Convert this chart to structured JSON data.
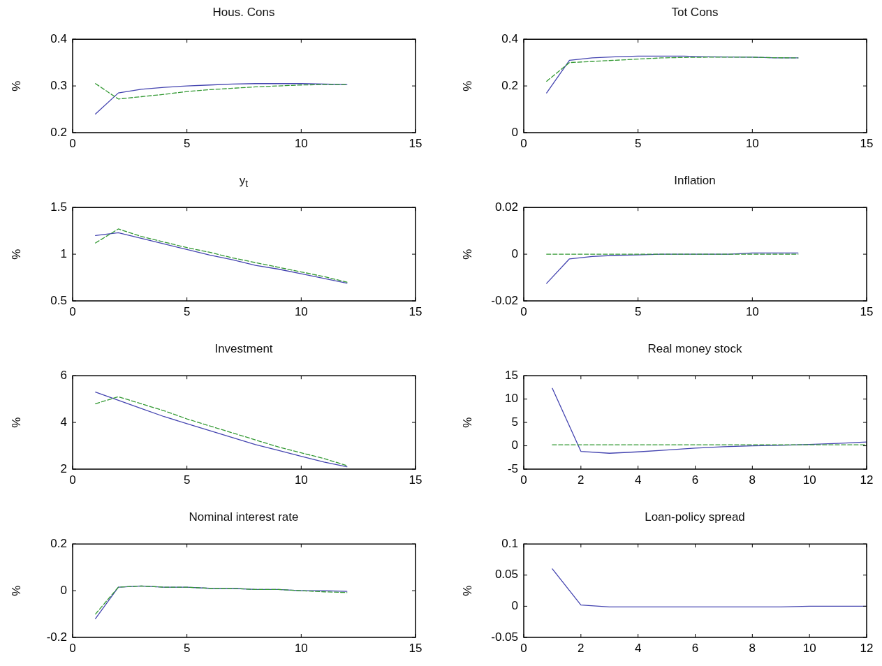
{
  "chart_data": [
    {
      "type": "line",
      "title": "Hous. Cons",
      "ylabel": "%",
      "x": [
        1,
        2,
        3,
        4,
        5,
        6,
        7,
        8,
        9,
        10,
        11,
        12
      ],
      "xlim": [
        0,
        15
      ],
      "xticks": [
        0,
        5,
        10,
        15
      ],
      "ylim": [
        0.2,
        0.4
      ],
      "yticks": [
        0.2,
        0.3,
        0.4
      ],
      "grid": false,
      "legend": false,
      "marker": "none",
      "series": [
        {
          "color": "#4444b0",
          "line_style": "solid",
          "values": [
            0.24,
            0.285,
            0.293,
            0.297,
            0.3,
            0.302,
            0.304,
            0.305,
            0.305,
            0.305,
            0.304,
            0.303
          ]
        },
        {
          "color": "#339933",
          "line_style": "dashed",
          "values": [
            0.305,
            0.272,
            0.277,
            0.282,
            0.288,
            0.292,
            0.295,
            0.298,
            0.3,
            0.302,
            0.303,
            0.303
          ]
        }
      ]
    },
    {
      "type": "line",
      "title": "Tot Cons",
      "ylabel": "%",
      "x": [
        1,
        2,
        3,
        4,
        5,
        6,
        7,
        8,
        9,
        10,
        11,
        12
      ],
      "xlim": [
        0,
        15
      ],
      "xticks": [
        0,
        5,
        10,
        15
      ],
      "ylim": [
        0,
        0.4
      ],
      "yticks": [
        0,
        0.2,
        0.4
      ],
      "grid": false,
      "legend": false,
      "marker": "none",
      "series": [
        {
          "color": "#4444b0",
          "line_style": "solid",
          "values": [
            0.17,
            0.31,
            0.32,
            0.325,
            0.328,
            0.328,
            0.328,
            0.325,
            0.324,
            0.323,
            0.32,
            0.32
          ]
        },
        {
          "color": "#339933",
          "line_style": "dashed",
          "values": [
            0.22,
            0.3,
            0.305,
            0.31,
            0.315,
            0.32,
            0.322,
            0.323,
            0.323,
            0.323,
            0.321,
            0.32
          ]
        }
      ]
    },
    {
      "type": "line",
      "title": "y$_{t}$",
      "ylabel": "%",
      "x": [
        1,
        2,
        3,
        4,
        5,
        6,
        7,
        8,
        9,
        10,
        11,
        12
      ],
      "xlim": [
        0,
        15
      ],
      "xticks": [
        0,
        5,
        10,
        15
      ],
      "ylim": [
        0.5,
        1.5
      ],
      "yticks": [
        0.5,
        1,
        1.5
      ],
      "grid": false,
      "legend": false,
      "marker": "none",
      "series": [
        {
          "color": "#4444b0",
          "line_style": "solid",
          "values": [
            1.2,
            1.23,
            1.17,
            1.11,
            1.05,
            0.99,
            0.94,
            0.88,
            0.84,
            0.79,
            0.74,
            0.69
          ]
        },
        {
          "color": "#339933",
          "line_style": "dashed",
          "values": [
            1.12,
            1.27,
            1.19,
            1.13,
            1.07,
            1.02,
            0.96,
            0.91,
            0.86,
            0.81,
            0.76,
            0.7
          ]
        }
      ]
    },
    {
      "type": "line",
      "title": "Inflation",
      "ylabel": "%",
      "x": [
        1,
        2,
        3,
        4,
        5,
        6,
        7,
        8,
        9,
        10,
        11,
        12
      ],
      "xlim": [
        0,
        15
      ],
      "xticks": [
        0,
        5,
        10,
        15
      ],
      "ylim": [
        -0.02,
        0.02
      ],
      "yticks": [
        -0.02,
        0,
        0.02
      ],
      "grid": false,
      "legend": false,
      "marker": "none",
      "series": [
        {
          "color": "#4444b0",
          "line_style": "solid",
          "values": [
            -0.0125,
            -0.002,
            -0.001,
            -0.0005,
            -0.0003,
            0,
            0,
            0,
            0,
            0.0005,
            0.0005,
            0.0005
          ]
        },
        {
          "color": "#339933",
          "line_style": "dashed",
          "values": [
            0,
            0,
            0,
            0,
            0,
            0,
            0,
            0,
            0,
            0,
            0,
            0
          ]
        }
      ]
    },
    {
      "type": "line",
      "title": "Investment",
      "ylabel": "%",
      "x": [
        1,
        2,
        3,
        4,
        5,
        6,
        7,
        8,
        9,
        10,
        11,
        12
      ],
      "xlim": [
        0,
        15
      ],
      "xticks": [
        0,
        5,
        10,
        15
      ],
      "ylim": [
        2,
        6
      ],
      "yticks": [
        2,
        4,
        6
      ],
      "grid": false,
      "legend": false,
      "marker": "none",
      "series": [
        {
          "color": "#4444b0",
          "line_style": "solid",
          "values": [
            5.3,
            4.95,
            4.6,
            4.25,
            3.95,
            3.65,
            3.35,
            3.05,
            2.8,
            2.55,
            2.3,
            2.1
          ]
        },
        {
          "color": "#339933",
          "line_style": "dashed",
          "values": [
            4.8,
            5.1,
            4.8,
            4.5,
            4.15,
            3.85,
            3.55,
            3.25,
            2.95,
            2.7,
            2.45,
            2.15
          ]
        }
      ]
    },
    {
      "type": "line",
      "title": "Real money stock",
      "ylabel": "%",
      "x": [
        1,
        2,
        3,
        4,
        5,
        6,
        7,
        8,
        9,
        10,
        11,
        12
      ],
      "xlim": [
        0,
        12
      ],
      "xticks": [
        0,
        2,
        4,
        6,
        8,
        10,
        12
      ],
      "ylim": [
        -5,
        15
      ],
      "yticks": [
        -5,
        0,
        5,
        10,
        15
      ],
      "grid": false,
      "legend": false,
      "marker": "none",
      "series": [
        {
          "color": "#4444b0",
          "line_style": "solid",
          "values": [
            12.3,
            -1.2,
            -1.6,
            -1.3,
            -0.9,
            -0.5,
            -0.2,
            0,
            0.1,
            0.3,
            0.5,
            0.8
          ]
        },
        {
          "color": "#339933",
          "line_style": "dashed",
          "values": [
            0.2,
            0.2,
            0.2,
            0.2,
            0.2,
            0.2,
            0.2,
            0.2,
            0.2,
            0.2,
            0.2,
            0.2
          ]
        }
      ]
    },
    {
      "type": "line",
      "title": "Nominal interest rate",
      "ylabel": "%",
      "x": [
        1,
        2,
        3,
        4,
        5,
        6,
        7,
        8,
        9,
        10,
        11,
        12
      ],
      "xlim": [
        0,
        15
      ],
      "xticks": [
        0,
        5,
        10,
        15
      ],
      "ylim": [
        -0.2,
        0.2
      ],
      "yticks": [
        -0.2,
        0,
        0.2
      ],
      "grid": false,
      "legend": false,
      "marker": "none",
      "series": [
        {
          "color": "#4444b0",
          "line_style": "solid",
          "values": [
            -0.12,
            0.015,
            0.02,
            0.015,
            0.015,
            0.01,
            0.01,
            0.005,
            0.005,
            0,
            0,
            -0.003
          ]
        },
        {
          "color": "#339933",
          "line_style": "dashed",
          "values": [
            -0.1,
            0.015,
            0.02,
            0.015,
            0.015,
            0.01,
            0.01,
            0.005,
            0.005,
            0,
            -0.005,
            -0.008
          ]
        }
      ]
    },
    {
      "type": "line",
      "title": "Loan-policy spread",
      "ylabel": "%",
      "x": [
        1,
        2,
        3,
        4,
        5,
        6,
        7,
        8,
        9,
        10,
        11,
        12
      ],
      "xlim": [
        0,
        12
      ],
      "xticks": [
        0,
        2,
        4,
        6,
        8,
        10,
        12
      ],
      "ylim": [
        -0.05,
        0.1
      ],
      "yticks": [
        -0.05,
        0,
        0.05,
        0.1
      ],
      "grid": false,
      "legend": false,
      "marker": "none",
      "series": [
        {
          "color": "#4444b0",
          "line_style": "solid",
          "values": [
            0.06,
            0.002,
            -0.001,
            -0.001,
            -0.001,
            -0.001,
            -0.001,
            -0.001,
            -0.001,
            0,
            0,
            0
          ]
        }
      ]
    }
  ]
}
